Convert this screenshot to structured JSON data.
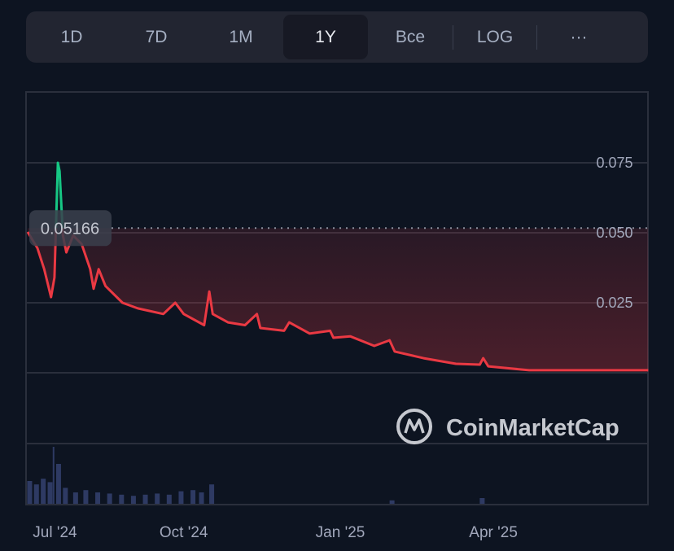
{
  "toolbar": {
    "buttons": [
      {
        "label": "1D",
        "active": false
      },
      {
        "label": "7D",
        "active": false
      },
      {
        "label": "1M",
        "active": false
      },
      {
        "label": "1Y",
        "active": true
      },
      {
        "label": "Bce",
        "active": false
      }
    ],
    "log_label": "LOG",
    "more_label": "···"
  },
  "watermark": "CoinMarketCap",
  "chart_data": {
    "type": "line",
    "baseline_value": 0.05166,
    "baseline_label": "0.05166",
    "ylim": [
      0,
      0.1
    ],
    "y_ticks": [
      {
        "value": 0.075,
        "label": "0.075"
      },
      {
        "value": 0.05,
        "label": "0.050"
      },
      {
        "value": 0.025,
        "label": "0.025"
      }
    ],
    "x_ticks": [
      {
        "date": "2024-07-01",
        "label": "Jul '24"
      },
      {
        "date": "2024-10-01",
        "label": "Oct '24"
      },
      {
        "date": "2025-01-01",
        "label": "Jan '25"
      },
      {
        "date": "2025-04-01",
        "label": "Apr '25"
      }
    ],
    "grid": true,
    "colors": {
      "up": "#16c784",
      "down": "#ea3943",
      "volume": "#2e3a63"
    },
    "price": [
      [
        "2024-07-01",
        0.0503
      ],
      [
        "2024-07-07",
        0.0445
      ],
      [
        "2024-07-11",
        0.037
      ],
      [
        "2024-07-15",
        0.027
      ],
      [
        "2024-07-17",
        0.034
      ],
      [
        "2024-07-19",
        0.075
      ],
      [
        "2024-07-20",
        0.072
      ],
      [
        "2024-07-22",
        0.049
      ],
      [
        "2024-07-24",
        0.043
      ],
      [
        "2024-07-28",
        0.049
      ],
      [
        "2024-08-02",
        0.046
      ],
      [
        "2024-08-07",
        0.037
      ],
      [
        "2024-08-09",
        0.03
      ],
      [
        "2024-08-12",
        0.037
      ],
      [
        "2024-08-16",
        0.031
      ],
      [
        "2024-08-26",
        0.025
      ],
      [
        "2024-09-04",
        0.023
      ],
      [
        "2024-09-19",
        0.021
      ],
      [
        "2024-09-26",
        0.025
      ],
      [
        "2024-10-01",
        0.021
      ],
      [
        "2024-10-13",
        0.017
      ],
      [
        "2024-10-16",
        0.029
      ],
      [
        "2024-10-18",
        0.021
      ],
      [
        "2024-10-27",
        0.018
      ],
      [
        "2024-11-06",
        0.017
      ],
      [
        "2024-11-13",
        0.021
      ],
      [
        "2024-11-15",
        0.016
      ],
      [
        "2024-11-29",
        0.015
      ],
      [
        "2024-12-02",
        0.018
      ],
      [
        "2024-12-14",
        0.014
      ],
      [
        "2024-12-26",
        0.015
      ],
      [
        "2024-12-28",
        0.0125
      ],
      [
        "2025-01-07",
        0.013
      ],
      [
        "2025-01-21",
        0.0096
      ],
      [
        "2025-01-30",
        0.0116
      ],
      [
        "2025-02-02",
        0.0076
      ],
      [
        "2025-02-19",
        0.0052
      ],
      [
        "2025-03-10",
        0.0032
      ],
      [
        "2025-03-24",
        0.0029
      ],
      [
        "2025-03-26",
        0.0052
      ],
      [
        "2025-03-29",
        0.0023
      ],
      [
        "2025-04-22",
        0.0009
      ],
      [
        "2025-05-16",
        0.0009
      ],
      [
        "2025-07-01",
        0.0009
      ]
    ],
    "volume": [
      [
        "2024-07-01",
        20
      ],
      [
        "2024-07-05",
        17
      ],
      [
        "2024-07-09",
        22
      ],
      [
        "2024-07-13",
        19
      ],
      [
        "2024-07-16",
        50
      ],
      [
        "2024-07-18",
        35
      ],
      [
        "2024-07-22",
        14
      ],
      [
        "2024-07-28",
        10
      ],
      [
        "2024-08-03",
        12
      ],
      [
        "2024-08-10",
        10
      ],
      [
        "2024-08-17",
        9
      ],
      [
        "2024-08-24",
        8
      ],
      [
        "2024-08-31",
        7
      ],
      [
        "2024-09-07",
        8
      ],
      [
        "2024-09-14",
        9
      ],
      [
        "2024-09-21",
        8
      ],
      [
        "2024-09-28",
        11
      ],
      [
        "2024-10-05",
        12
      ],
      [
        "2024-10-10",
        10
      ],
      [
        "2024-10-16",
        17
      ],
      [
        "2025-01-30",
        3
      ],
      [
        "2025-03-24",
        5
      ]
    ]
  }
}
